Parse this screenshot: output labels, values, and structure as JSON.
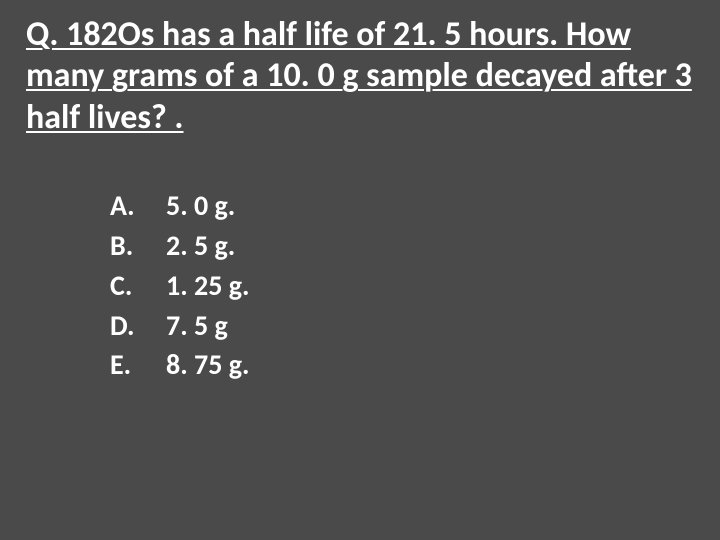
{
  "slide": {
    "background_color": "#4a4a4a",
    "text_color": "#ffffff",
    "question_fontsize": 34,
    "answer_fontsize": 28,
    "font_family": "Calibri",
    "question": "Q.  182Os has a half life of 21. 5 hours. How many grams of a 10. 0 g sample decayed after 3 half lives? .",
    "answers": [
      {
        "letter": "A.",
        "text": "5. 0 g."
      },
      {
        "letter": "B.",
        "text": "2. 5 g."
      },
      {
        "letter": "C.",
        "text": "1. 25 g."
      },
      {
        "letter": "D.",
        "text": "7. 5 g"
      },
      {
        "letter": "E.",
        "text": "8. 75 g."
      }
    ]
  }
}
